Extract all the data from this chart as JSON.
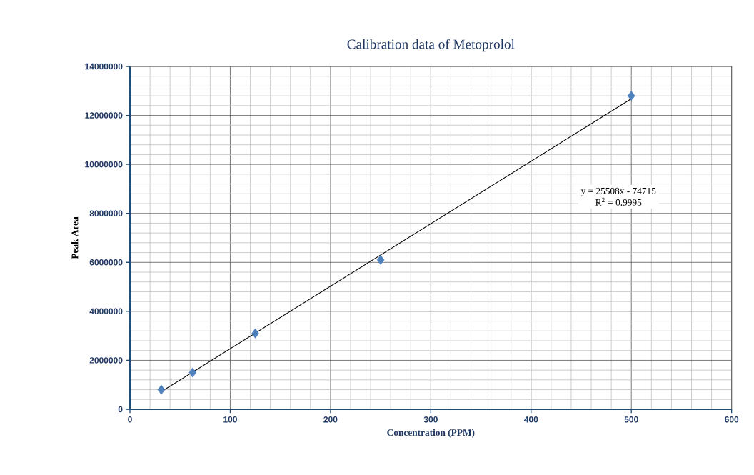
{
  "chart_data": {
    "type": "scatter",
    "title": "Calibration data of Metoprolol",
    "xlabel": "Concentration (PPM)",
    "ylabel": "Peak Area",
    "x": [
      31.25,
      62.5,
      125,
      250,
      500
    ],
    "series": [
      {
        "color": "#4f81bd",
        "marker": "diamond",
        "values": [
          800000,
          1500000,
          3100000,
          6100000,
          12800000
        ]
      },
      {
        "type": "line",
        "color": "#000000",
        "marker": "none",
        "line_style": "solid",
        "x": [
          31.25,
          500
        ],
        "values": [
          720000,
          12680000
        ]
      }
    ],
    "xlim": [
      0,
      600
    ],
    "xticks": [
      0,
      100,
      200,
      300,
      400,
      500,
      600
    ],
    "ylim": [
      0,
      14000000
    ],
    "yticks": [
      0,
      2000000,
      4000000,
      6000000,
      8000000,
      10000000,
      12000000,
      14000000
    ],
    "grid": true,
    "annotations": [
      "y = 25508x - 74715",
      "R$^{2}$ = 0.9995"
    ]
  }
}
